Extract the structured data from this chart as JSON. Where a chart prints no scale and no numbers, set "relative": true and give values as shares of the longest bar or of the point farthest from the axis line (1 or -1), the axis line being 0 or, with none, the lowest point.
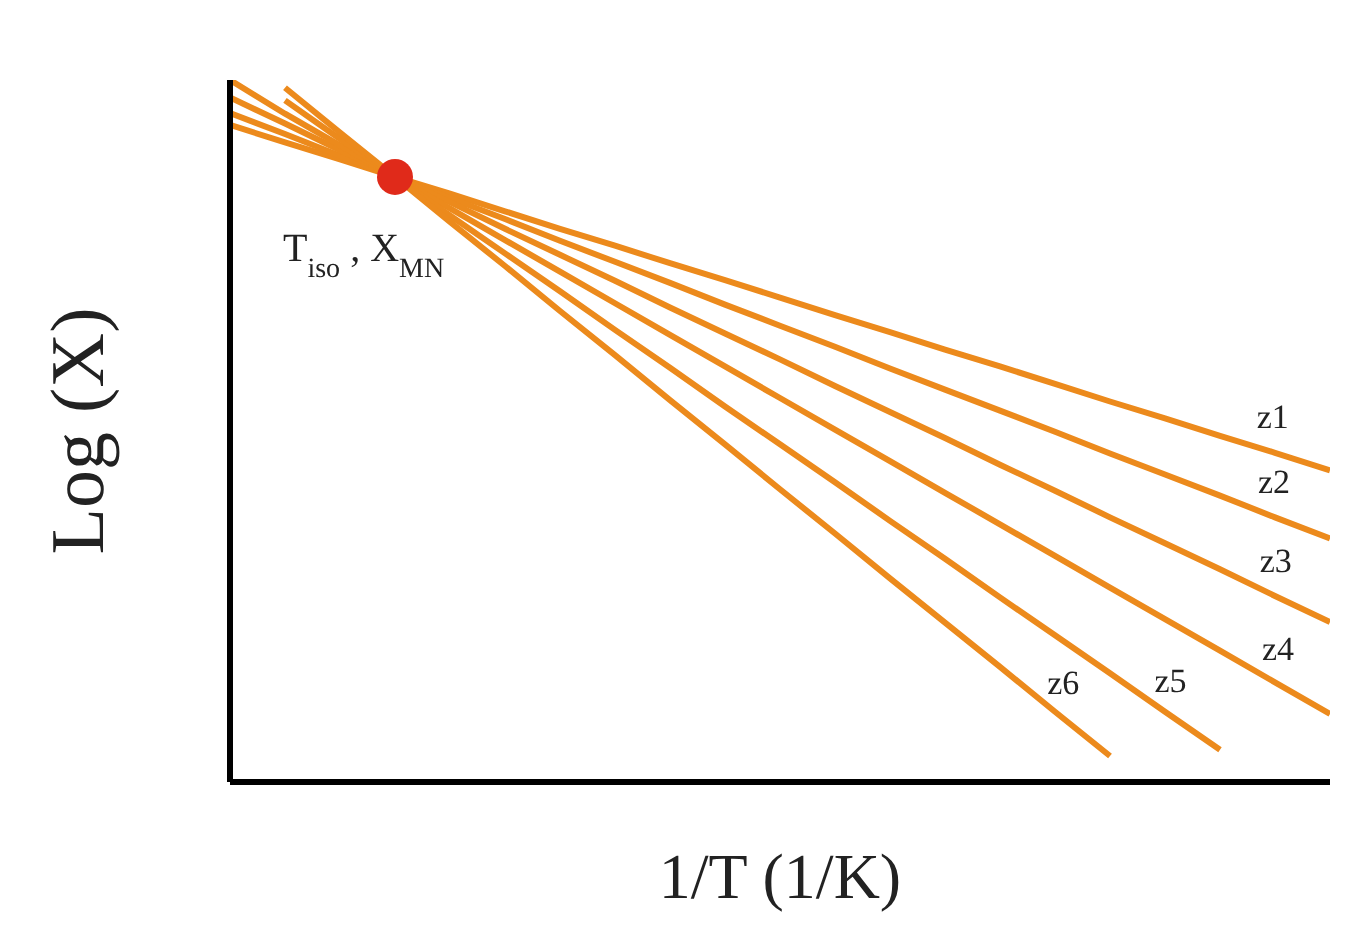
{
  "chart_data": {
    "type": "line",
    "xlabel": "1/T (1/K)",
    "ylabel": "Log (X)",
    "relative": true,
    "legend": false,
    "marker": "none",
    "line_style": "solid",
    "categories": [
      null,
      null,
      null,
      null,
      null,
      null,
      null,
      null,
      null,
      null,
      null,
      null,
      null,
      null,
      null,
      null,
      null,
      null,
      null,
      null,
      null
    ],
    "series": [
      {
        "name": "z1",
        "color": "#ec8a1c",
        "values": [
          0.936,
          0.911,
          0.887,
          0.862,
          0.838,
          0.813,
          0.788,
          0.764,
          0.739,
          0.715,
          0.69,
          0.665,
          0.641,
          0.616,
          0.592,
          0.567,
          0.542,
          0.518,
          0.493,
          0.469,
          0.444
        ]
      },
      {
        "name": "z2",
        "color": "#ec8a1c",
        "values": [
          0.953,
          0.923,
          0.892,
          0.862,
          0.832,
          0.802,
          0.771,
          0.741,
          0.711,
          0.68,
          0.65,
          0.62,
          0.589,
          0.559,
          0.529,
          0.499,
          0.468,
          0.438,
          0.408,
          0.377,
          0.347
        ]
      },
      {
        "name": "z3",
        "color": "#ec8a1c",
        "values": [
          0.975,
          0.938,
          0.9,
          0.863,
          0.826,
          0.788,
          0.751,
          0.714,
          0.676,
          0.639,
          0.602,
          0.564,
          0.527,
          0.49,
          0.452,
          0.415,
          0.377,
          0.34,
          0.303,
          0.265,
          0.228
        ]
      },
      {
        "name": "z4",
        "color": "#ec8a1c",
        "values": [
          1,
          0.952,
          0.907,
          0.862,
          0.817,
          0.772,
          0.727,
          0.682,
          0.637,
          0.592,
          0.547,
          0.502,
          0.457,
          0.412,
          0.367,
          0.322,
          0.277,
          0.232,
          0.187,
          0.142,
          0.097
        ]
      },
      {
        "name": "z5",
        "color": "#ec8a1c",
        "values": [
          null,
          0.971,
          0.916,
          0.862,
          0.807,
          0.753,
          0.699,
          0.644,
          0.59,
          0.535,
          0.481,
          0.427,
          0.372,
          0.318,
          0.263,
          0.209,
          0.155,
          0.1,
          0.046,
          null,
          null
        ]
      },
      {
        "name": "z6",
        "color": "#ec8a1c",
        "values": [
          null,
          0.989,
          0.925,
          0.862,
          0.798,
          0.735,
          0.671,
          0.608,
          0.544,
          0.481,
          0.417,
          0.354,
          0.29,
          0.227,
          0.164,
          0.1,
          0.037,
          null,
          null,
          null,
          null
        ]
      }
    ],
    "annotations": [
      "T$_{iso}$, X$_{MN}$"
    ]
  }
}
